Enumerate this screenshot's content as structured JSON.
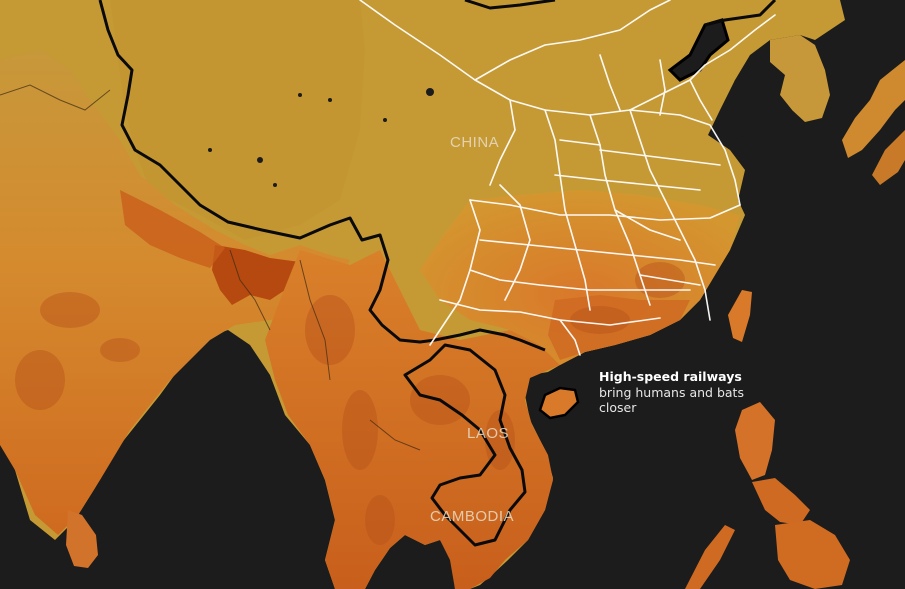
{
  "labels": {
    "china": "CHINA",
    "laos": "LAOS",
    "cambodia": "CAMBODIA"
  },
  "callout": {
    "bold": "High-speed railways",
    "rest": " bring humans and bats closer"
  },
  "colors": {
    "ocean": "#1c1c1c",
    "land_plateau": "#c59a35",
    "land_low": "#d98a2c",
    "land_high": "#c25718",
    "land_peak": "#a63f0f",
    "rail": "#ffffff",
    "border": "#000000"
  }
}
